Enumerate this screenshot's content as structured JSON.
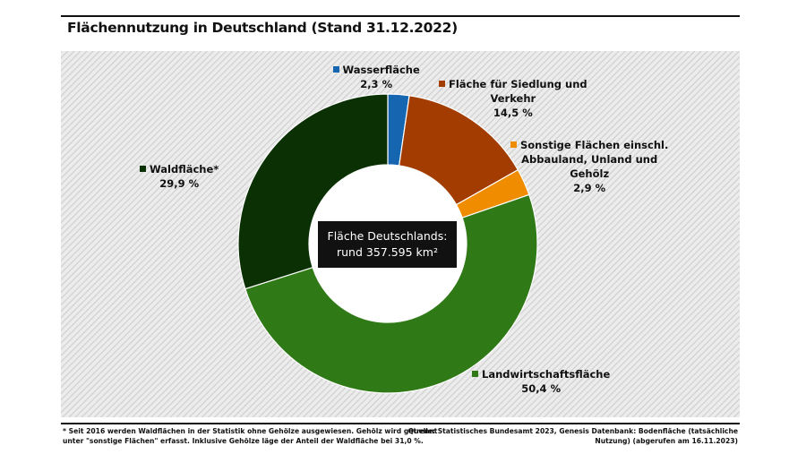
{
  "title": "Flächennutzung in Deutschland (Stand 31.12.2022)",
  "center_label": {
    "line1": "Fläche Deutschlands:",
    "line2": "rund 357.595 km²"
  },
  "footnote": {
    "line1": "* Seit 2016 werden Waldflächen in der Statistik ohne Gehölze ausgewiesen. Gehölz wird getrennt",
    "line2": "unter \"sonstige Flächen\" erfasst. Inklusive Gehölze läge der Anteil der Waldfläche bei 31,0 %."
  },
  "source": {
    "line1": "Quelle: Statistisches Bundesamt 2023, Genesis Datenbank: Bodenfläche (tatsächliche",
    "line2": "Nutzung) (abgerufen am 16.11.2023)"
  },
  "chart_data": {
    "type": "pie",
    "title": "Flächennutzung in Deutschland (Stand 31.12.2022)",
    "unit": "%",
    "slices": [
      {
        "label_lines": [
          "Wasserfläche"
        ],
        "value": 2.3,
        "value_label": "2,3 %",
        "color": "#1565b0"
      },
      {
        "label_lines": [
          "Fläche für Siedlung und",
          "Verkehr"
        ],
        "value": 14.5,
        "value_label": "14,5 %",
        "color": "#a23c00"
      },
      {
        "label_lines": [
          "Sonstige Flächen einschl.",
          "Abbauland, Unland und",
          "Gehölz"
        ],
        "value": 2.9,
        "value_label": "2,9 %",
        "color": "#f08c00"
      },
      {
        "label_lines": [
          "Landwirtschaftsfläche"
        ],
        "value": 50.4,
        "value_label": "50,4 %",
        "color": "#2f7a16"
      },
      {
        "label_lines": [
          "Waldfläche*"
        ],
        "value": 29.9,
        "value_label": "29,9 %",
        "color": "#0a3004"
      }
    ]
  }
}
